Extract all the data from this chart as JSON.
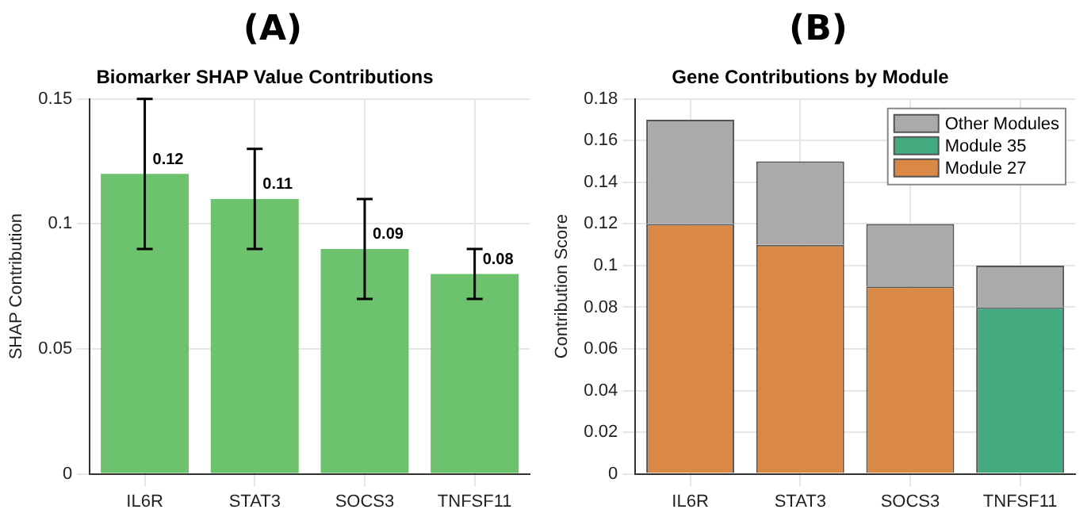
{
  "chart_data": [
    {
      "type": "bar",
      "title": "Biomarker SHAP Value Contributions",
      "ylabel": "SHAP Contribution",
      "annotations": [
        "(A)"
      ],
      "categories": [
        "IL6R",
        "STAT3",
        "SOCS3",
        "TNFSF11"
      ],
      "values": [
        0.12,
        0.11,
        0.09,
        0.08
      ],
      "color": "#6dc26d",
      "errors": [
        [
          0.09,
          0.15
        ],
        [
          0.09,
          0.13
        ],
        [
          0.07,
          0.11
        ],
        [
          0.07,
          0.09
        ]
      ],
      "data_labels": true,
      "ylim": [
        0,
        0.15
      ],
      "yticks": [
        0,
        0.05,
        0.1,
        0.15
      ],
      "grid": true,
      "legend": false
    },
    {
      "type": "bar",
      "title": "Gene Contributions by Module",
      "ylabel": "Contribution Score",
      "annotations": [
        "(B)"
      ],
      "categories": [
        "IL6R",
        "STAT3",
        "SOCS3",
        "TNFSF11"
      ],
      "stacked": true,
      "series": [
        {
          "name": "Module 27",
          "color": "#d98845",
          "values": [
            0.12,
            0.11,
            0.09,
            null
          ]
        },
        {
          "name": "Module 35",
          "color": "#44aa80",
          "values": [
            null,
            null,
            null,
            0.08
          ]
        },
        {
          "name": "Other Modules",
          "color": "#aaaaaa",
          "values": [
            0.05,
            0.04,
            0.03,
            0.02
          ]
        }
      ],
      "ylim": [
        0,
        0.18
      ],
      "yticks": [
        0,
        0.02,
        0.04,
        0.06,
        0.08,
        0.1,
        0.12,
        0.14,
        0.16,
        0.18
      ],
      "grid": true,
      "legend": "top right"
    }
  ]
}
